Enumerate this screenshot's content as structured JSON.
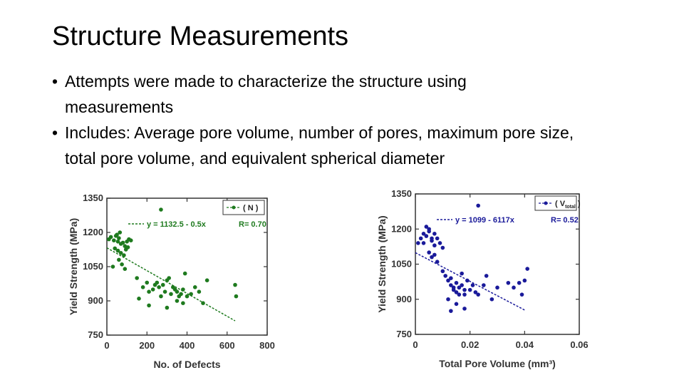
{
  "slide": {
    "title": "Structure Measurements",
    "bullets": [
      {
        "marker": "•",
        "lines": [
          "Attempts were made to characterize the structure using",
          "measurements"
        ]
      },
      {
        "marker": "•",
        "lines": [
          "Includes: Average pore volume, number of pores, maximum pore size,",
          "total pore volume, and equivalent spherical diameter"
        ]
      }
    ]
  },
  "chart_data": [
    {
      "type": "scatter",
      "xlabel": "No. of Defects",
      "ylabel": "Yield Strength (MPa)",
      "xlim": [
        0,
        800
      ],
      "ylim": [
        750,
        1350
      ],
      "xticks": [
        0,
        200,
        400,
        600,
        800
      ],
      "yticks": [
        750,
        900,
        1050,
        1200,
        1350
      ],
      "legend": {
        "label": "( N )",
        "placement": "top-right"
      },
      "fit": {
        "equation": "y = 1132.5 - 0.5x",
        "r": "R= 0.70",
        "x": [
          0,
          640
        ],
        "y": [
          1132.5,
          812.5
        ]
      },
      "color": "#1e7a1e",
      "series": [
        {
          "x": [
            10,
            20,
            35,
            45,
            50,
            55,
            60,
            65,
            70,
            80,
            90,
            100,
            110,
            120,
            40,
            55,
            70,
            85,
            95,
            105,
            30,
            60,
            75,
            90,
            150,
            180,
            200,
            210,
            230,
            240,
            250,
            260,
            270,
            280,
            290,
            300,
            310,
            320,
            330,
            340,
            350,
            360,
            370,
            380,
            390,
            400,
            420,
            440,
            460,
            480,
            500,
            640,
            645,
            270,
            160,
            210,
            300,
            350,
            380
          ],
          "y": [
            1170,
            1180,
            1165,
            1185,
            1190,
            1160,
            1175,
            1200,
            1150,
            1155,
            1140,
            1160,
            1170,
            1165,
            1130,
            1120,
            1110,
            1100,
            1125,
            1135,
            1050,
            1080,
            1060,
            1040,
            1000,
            960,
            980,
            940,
            950,
            970,
            980,
            960,
            920,
            970,
            940,
            990,
            1000,
            930,
            960,
            950,
            940,
            920,
            930,
            950,
            1020,
            920,
            930,
            960,
            940,
            890,
            990,
            970,
            920,
            1300,
            910,
            880,
            870,
            900,
            890
          ]
        }
      ]
    },
    {
      "type": "scatter",
      "xlabel": "Total Pore Volume (mm³)",
      "ylabel": "Yield Strength (MPa)",
      "xlim": [
        0,
        0.06
      ],
      "ylim": [
        750,
        1350
      ],
      "xticks": [
        0,
        0.02,
        0.04,
        0.06
      ],
      "xtick_labels": [
        "0",
        "0.02",
        "0.04",
        "0.06"
      ],
      "yticks": [
        750,
        900,
        1050,
        1200,
        1350
      ],
      "legend": {
        "label": "( V",
        "sub": "total",
        "close": " )",
        "placement": "top-right"
      },
      "fit": {
        "equation": "y = 1099 - 6117x",
        "r": "R= 0.52",
        "x": [
          0,
          0.04
        ],
        "y": [
          1099,
          854
        ]
      },
      "color": "#1a1a9a",
      "series": [
        {
          "x": [
            0.001,
            0.002,
            0.003,
            0.004,
            0.005,
            0.005,
            0.006,
            0.006,
            0.007,
            0.007,
            0.008,
            0.009,
            0.01,
            0.004,
            0.005,
            0.006,
            0.007,
            0.003,
            0.008,
            0.01,
            0.011,
            0.012,
            0.013,
            0.013,
            0.014,
            0.014,
            0.015,
            0.015,
            0.016,
            0.016,
            0.017,
            0.017,
            0.018,
            0.018,
            0.019,
            0.02,
            0.021,
            0.022,
            0.023,
            0.025,
            0.026,
            0.028,
            0.03,
            0.034,
            0.036,
            0.038,
            0.039,
            0.04,
            0.041,
            0.023,
            0.012,
            0.015,
            0.018,
            0.013
          ],
          "y": [
            1140,
            1160,
            1180,
            1170,
            1200,
            1190,
            1150,
            1160,
            1180,
            1130,
            1160,
            1140,
            1120,
            1210,
            1100,
            1080,
            1090,
            1140,
            1060,
            1020,
            1000,
            980,
            960,
            990,
            940,
            950,
            970,
            930,
            920,
            950,
            1010,
            960,
            940,
            920,
            980,
            940,
            960,
            930,
            920,
            960,
            1000,
            900,
            950,
            970,
            950,
            970,
            920,
            980,
            1030,
            1300,
            900,
            880,
            860,
            850
          ]
        }
      ]
    }
  ]
}
